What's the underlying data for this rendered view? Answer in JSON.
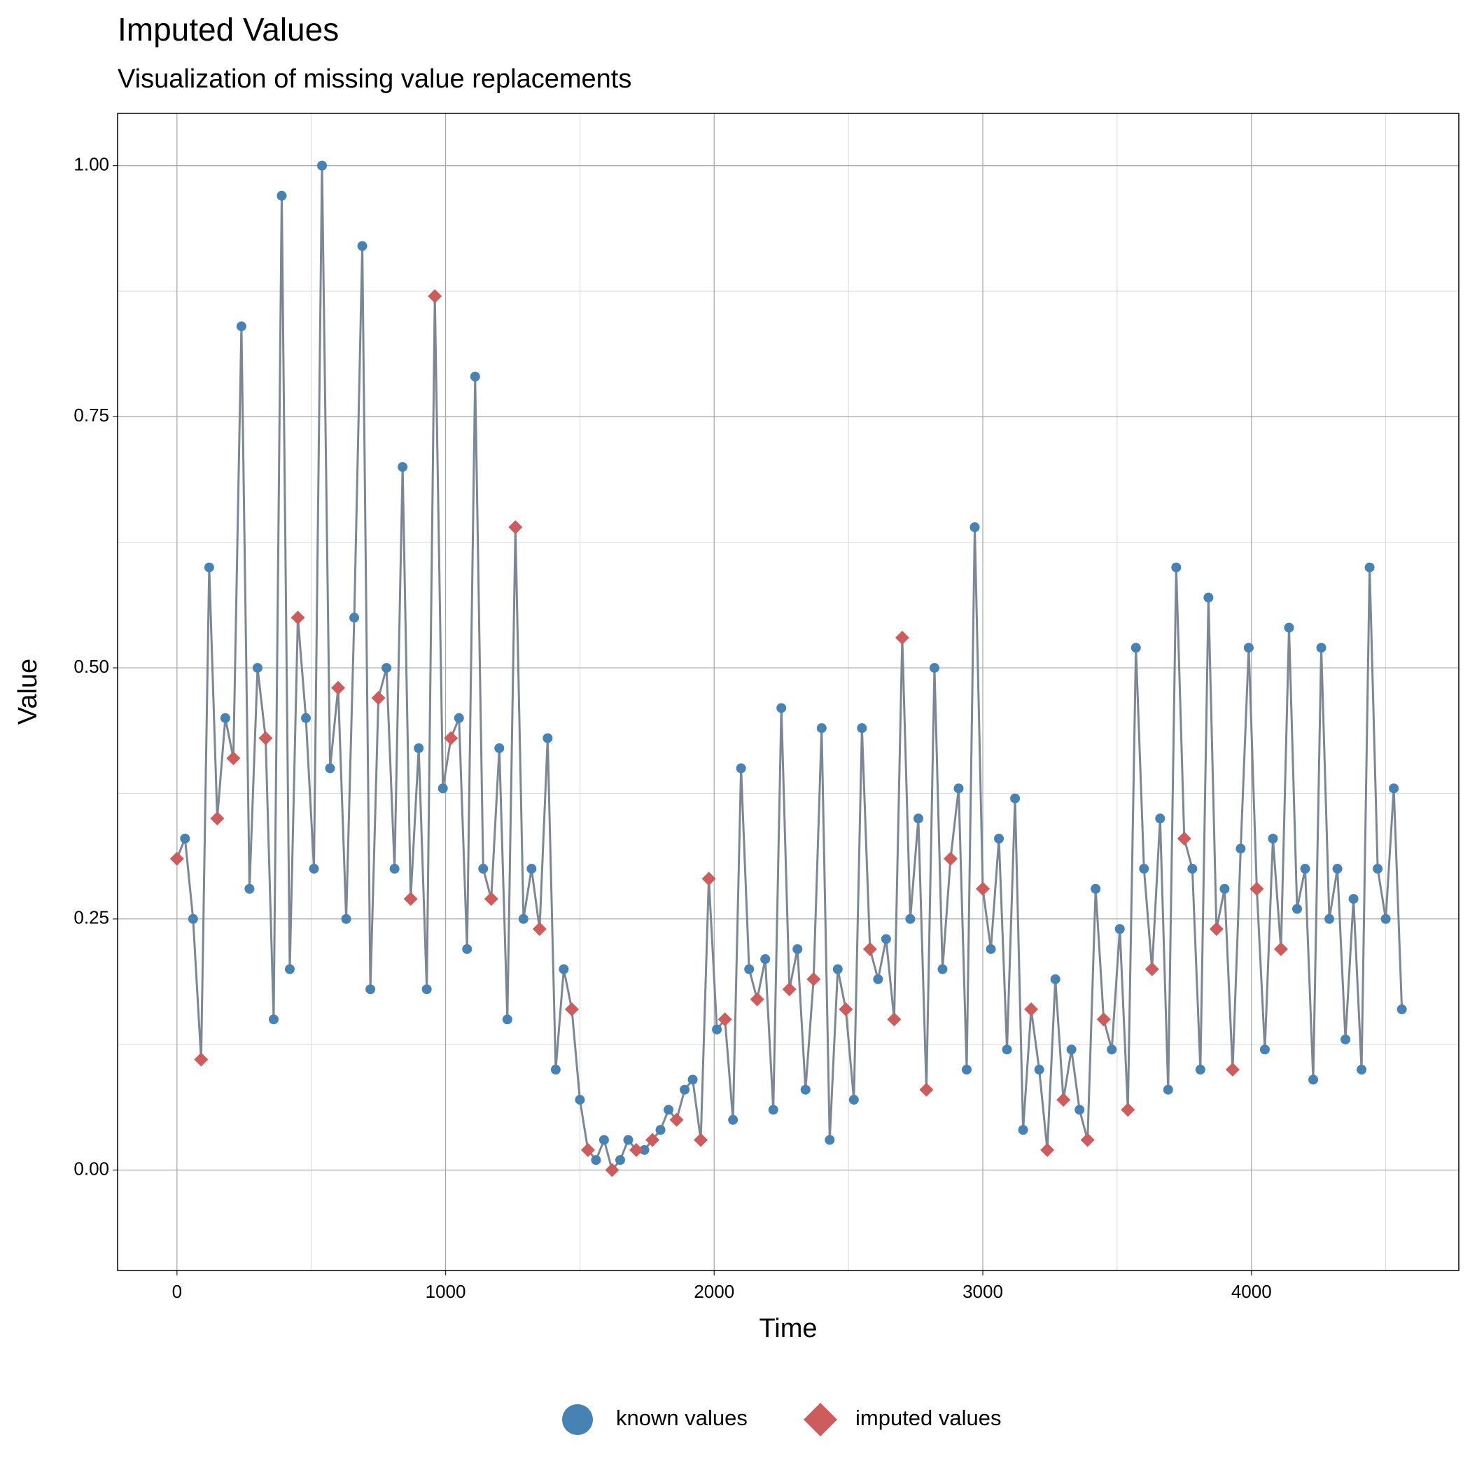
{
  "chart_data": {
    "type": "line-scatter",
    "title": "Imputed Values",
    "subtitle": "Visualization of missing value replacements",
    "x_label": "Time",
    "y_label": "Value",
    "xlim": [
      -221,
      4772
    ],
    "ylim": [
      -0.1,
      1.052
    ],
    "xticks": [
      0,
      1000,
      2000,
      3000,
      4000
    ],
    "yticks": [
      {
        "value": 0,
        "label": "0.00"
      },
      {
        "value": 0.25,
        "label": "0.25"
      },
      {
        "value": 0.5,
        "label": "0.50"
      },
      {
        "value": 0.75,
        "label": "0.75"
      },
      {
        "value": 1,
        "label": "1.00"
      }
    ],
    "grid": true,
    "legend": "bottom",
    "line_color": "#7b8794",
    "x": [
      0,
      30,
      60,
      90,
      120,
      150,
      180,
      210,
      240,
      270,
      300,
      330,
      360,
      390,
      420,
      450,
      480,
      510,
      540,
      570,
      600,
      630,
      660,
      690,
      720,
      750,
      780,
      810,
      840,
      870,
      900,
      930,
      960,
      990,
      1020,
      1050,
      1080,
      1110,
      1140,
      1170,
      1200,
      1230,
      1260,
      1290,
      1320,
      1350,
      1380,
      1410,
      1440,
      1470,
      1500,
      1530,
      1560,
      1590,
      1620,
      1650,
      1680,
      1710,
      1740,
      1770,
      1800,
      1830,
      1860,
      1890,
      1920,
      1950,
      1980,
      2010,
      2040,
      2070,
      2100,
      2130,
      2160,
      2190,
      2220,
      2250,
      2280,
      2310,
      2340,
      2370,
      2400,
      2430,
      2460,
      2490,
      2520,
      2550,
      2580,
      2610,
      2640,
      2670,
      2700,
      2730,
      2760,
      2790,
      2820,
      2850,
      2880,
      2910,
      2940,
      2970,
      3000,
      3030,
      3060,
      3090,
      3120,
      3150,
      3180,
      3210,
      3240,
      3270,
      3300,
      3330,
      3360,
      3390,
      3420,
      3450,
      3480,
      3510,
      3540,
      3570,
      3600,
      3630,
      3660,
      3690,
      3720,
      3750,
      3780,
      3810,
      3840,
      3870,
      3900,
      3930,
      3960,
      3990,
      4020,
      4050,
      4080,
      4110,
      4140,
      4170,
      4200,
      4230,
      4260,
      4290,
      4320,
      4350,
      4380,
      4410,
      4440,
      4470,
      4500,
      4530,
      4560
    ],
    "series": [
      {
        "name": "known values",
        "color": "#4682b4",
        "values": [
          null,
          0.33,
          0.25,
          null,
          0.6,
          null,
          0.45,
          null,
          0.84,
          0.28,
          0.5,
          null,
          0.15,
          0.97,
          0.2,
          null,
          0.45,
          0.3,
          1.0,
          0.4,
          null,
          0.25,
          0.55,
          0.92,
          0.18,
          null,
          0.5,
          0.3,
          0.7,
          null,
          0.42,
          0.18,
          null,
          0.38,
          null,
          0.45,
          0.22,
          0.79,
          0.3,
          null,
          0.42,
          0.15,
          null,
          0.25,
          0.3,
          null,
          0.43,
          0.1,
          0.2,
          null,
          0.07,
          null,
          0.01,
          0.03,
          null,
          0.01,
          0.03,
          null,
          0.02,
          null,
          0.04,
          0.06,
          null,
          0.08,
          0.09,
          null,
          null,
          0.14,
          null,
          0.05,
          0.4,
          0.2,
          null,
          0.21,
          0.06,
          0.46,
          null,
          0.22,
          0.08,
          null,
          0.44,
          0.03,
          0.2,
          null,
          0.07,
          0.44,
          null,
          0.19,
          0.23,
          null,
          null,
          0.25,
          0.35,
          null,
          0.5,
          0.2,
          null,
          0.38,
          0.1,
          0.64,
          null,
          0.22,
          0.33,
          0.12,
          0.37,
          0.04,
          null,
          0.1,
          null,
          0.19,
          null,
          0.12,
          0.06,
          null,
          0.28,
          null,
          0.12,
          0.24,
          null,
          0.52,
          0.3,
          null,
          0.35,
          0.08,
          0.6,
          null,
          0.3,
          0.1,
          0.57,
          null,
          0.28,
          null,
          0.32,
          0.52,
          null,
          0.12,
          0.33,
          null,
          0.54,
          0.26,
          0.3,
          0.09,
          0.52,
          0.25,
          0.3,
          0.13,
          0.27,
          0.1,
          0.6,
          0.3,
          0.25,
          0.38,
          0.16
        ]
      },
      {
        "name": "imputed values",
        "color": "#cd5c5c",
        "values": [
          0.31,
          null,
          null,
          0.11,
          null,
          0.35,
          null,
          0.41,
          null,
          null,
          null,
          0.43,
          null,
          null,
          null,
          0.55,
          null,
          null,
          null,
          null,
          0.48,
          null,
          null,
          null,
          null,
          0.47,
          null,
          null,
          null,
          0.27,
          null,
          null,
          0.87,
          null,
          0.43,
          null,
          null,
          null,
          null,
          0.27,
          null,
          null,
          0.64,
          null,
          null,
          0.24,
          null,
          null,
          null,
          0.16,
          null,
          0.02,
          null,
          null,
          0,
          null,
          null,
          0.02,
          null,
          0.03,
          null,
          null,
          0.05,
          null,
          null,
          0.03,
          0.29,
          null,
          0.15,
          null,
          null,
          null,
          0.17,
          null,
          null,
          null,
          0.18,
          null,
          null,
          0.19,
          null,
          null,
          null,
          0.16,
          null,
          null,
          0.22,
          null,
          null,
          0.15,
          0.53,
          null,
          null,
          0.08,
          null,
          null,
          0.31,
          null,
          null,
          null,
          0.28,
          null,
          null,
          null,
          null,
          null,
          0.16,
          null,
          0.02,
          null,
          0.07,
          null,
          null,
          0.03,
          null,
          0.15,
          null,
          null,
          0.06,
          null,
          null,
          0.2,
          null,
          null,
          null,
          0.33,
          null,
          null,
          null,
          0.24,
          null,
          0.1,
          null,
          null,
          0.28,
          null,
          null,
          0.22,
          null,
          null,
          null,
          null,
          null,
          null,
          null,
          null,
          null,
          null,
          null,
          null,
          null,
          null,
          null
        ]
      }
    ]
  }
}
